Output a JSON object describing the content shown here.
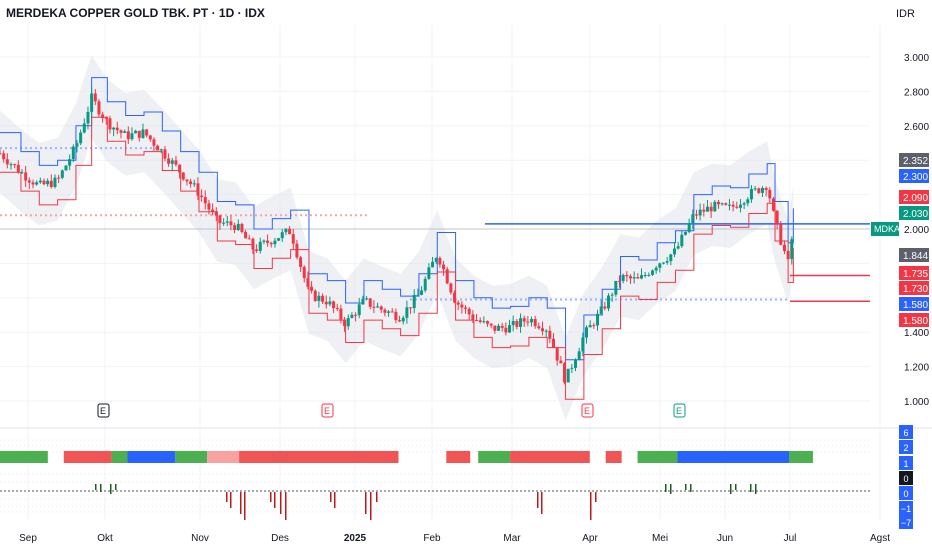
{
  "header": {
    "title": "MERDEKA COPPER GOLD TBK. PT · 1D · IDX",
    "currency": "IDR"
  },
  "colors": {
    "up": "#089981",
    "down": "#f23645",
    "blue": "#2962ff",
    "red_line": "#f23645",
    "band": "#e0e3eb",
    "grid": "#f0f3fa",
    "text": "#131722",
    "axis_text": "#131722"
  },
  "chart_data": {
    "type": "candlestick",
    "title": "MERDEKA COPPER GOLD TBK. PT · 1D · IDX",
    "ylim": [
      950,
      3150
    ],
    "yticks": [
      "3.000",
      "2.800",
      "2.600",
      "1.400",
      "1.200",
      "1.000"
    ],
    "xticks": [
      "Sep",
      "Okt",
      "Nov",
      "Des",
      "2025",
      "Feb",
      "Mar",
      "Apr",
      "Mei",
      "Jun",
      "Jul",
      "Agst"
    ],
    "price_labels": [
      {
        "text": "2.352",
        "kind": "gray"
      },
      {
        "text": "2.300",
        "kind": "blue"
      },
      {
        "text": "2.090",
        "kind": "red"
      },
      {
        "text": "2.030",
        "kind": "teal"
      },
      {
        "text": "1.844",
        "kind": "gray"
      },
      {
        "text": "1.735",
        "kind": "red"
      },
      {
        "text": "1.730",
        "kind": "red"
      },
      {
        "text": "1.580",
        "kind": "blue"
      },
      {
        "text": "1.580",
        "kind": "red"
      }
    ],
    "symbol_label": "MDKA",
    "symbol_price": "2.000",
    "hidden_tick": "2.090",
    "event_markers": [
      "E",
      "E",
      "E",
      "E"
    ],
    "close_path": [
      {
        "d": "2024-08-28",
        "v": 2440
      },
      {
        "d": "2024-09-05",
        "v": 2330
      },
      {
        "d": "2024-09-12",
        "v": 2250
      },
      {
        "d": "2024-09-19",
        "v": 2280
      },
      {
        "d": "2024-09-26",
        "v": 2480
      },
      {
        "d": "2024-10-02",
        "v": 2760
      },
      {
        "d": "2024-10-08",
        "v": 2620
      },
      {
        "d": "2024-10-15",
        "v": 2540
      },
      {
        "d": "2024-10-22",
        "v": 2560
      },
      {
        "d": "2024-10-29",
        "v": 2450
      },
      {
        "d": "2024-11-05",
        "v": 2330
      },
      {
        "d": "2024-11-12",
        "v": 2210
      },
      {
        "d": "2024-11-19",
        "v": 2040
      },
      {
        "d": "2024-11-26",
        "v": 2020
      },
      {
        "d": "2024-12-03",
        "v": 1880
      },
      {
        "d": "2024-12-10",
        "v": 1940
      },
      {
        "d": "2024-12-17",
        "v": 1990
      },
      {
        "d": "2024-12-24",
        "v": 1620
      },
      {
        "d": "2024-12-31",
        "v": 1580
      },
      {
        "d": "2025-01-07",
        "v": 1450
      },
      {
        "d": "2025-01-14",
        "v": 1580
      },
      {
        "d": "2025-01-21",
        "v": 1530
      },
      {
        "d": "2025-01-28",
        "v": 1490
      },
      {
        "d": "2025-02-04",
        "v": 1620
      },
      {
        "d": "2025-02-11",
        "v": 1860
      },
      {
        "d": "2025-02-18",
        "v": 1580
      },
      {
        "d": "2025-02-25",
        "v": 1480
      },
      {
        "d": "2025-03-04",
        "v": 1420
      },
      {
        "d": "2025-03-11",
        "v": 1430
      },
      {
        "d": "2025-03-18",
        "v": 1480
      },
      {
        "d": "2025-03-25",
        "v": 1420
      },
      {
        "d": "2025-04-01",
        "v": 1120
      },
      {
        "d": "2025-04-08",
        "v": 1380
      },
      {
        "d": "2025-04-15",
        "v": 1530
      },
      {
        "d": "2025-04-22",
        "v": 1720
      },
      {
        "d": "2025-04-29",
        "v": 1700
      },
      {
        "d": "2025-05-06",
        "v": 1800
      },
      {
        "d": "2025-05-13",
        "v": 1870
      },
      {
        "d": "2025-05-20",
        "v": 2080
      },
      {
        "d": "2025-05-27",
        "v": 2130
      },
      {
        "d": "2025-06-03",
        "v": 2120
      },
      {
        "d": "2025-06-10",
        "v": 2200
      },
      {
        "d": "2025-06-17",
        "v": 2260
      },
      {
        "d": "2025-06-20",
        "v": 2040
      },
      {
        "d": "2025-06-25",
        "v": 1800
      },
      {
        "d": "2025-06-27",
        "v": 2000
      }
    ],
    "indicator_rows": {
      "right_labels": [
        "6",
        "2",
        "1",
        "0",
        "0",
        "−1",
        "−7"
      ],
      "strip_segments": [
        {
          "color": "green",
          "share": 0.06
        },
        {
          "color": "gap",
          "share": 0.02
        },
        {
          "color": "red",
          "share": 0.06
        },
        {
          "color": "green",
          "share": 0.02
        },
        {
          "color": "blue",
          "share": 0.06
        },
        {
          "color": "green",
          "share": 0.04
        },
        {
          "color": "pink",
          "share": 0.04
        },
        {
          "color": "red",
          "share": 0.2
        },
        {
          "color": "gap",
          "share": 0.06
        },
        {
          "color": "red",
          "share": 0.03
        },
        {
          "color": "gap",
          "share": 0.01
        },
        {
          "color": "green",
          "share": 0.04
        },
        {
          "color": "red",
          "share": 0.1
        },
        {
          "color": "gap",
          "share": 0.02
        },
        {
          "color": "red",
          "share": 0.02
        },
        {
          "color": "gap",
          "share": 0.02
        },
        {
          "color": "green",
          "share": 0.05
        },
        {
          "color": "blue",
          "share": 0.14
        },
        {
          "color": "green",
          "share": 0.03
        }
      ]
    }
  }
}
